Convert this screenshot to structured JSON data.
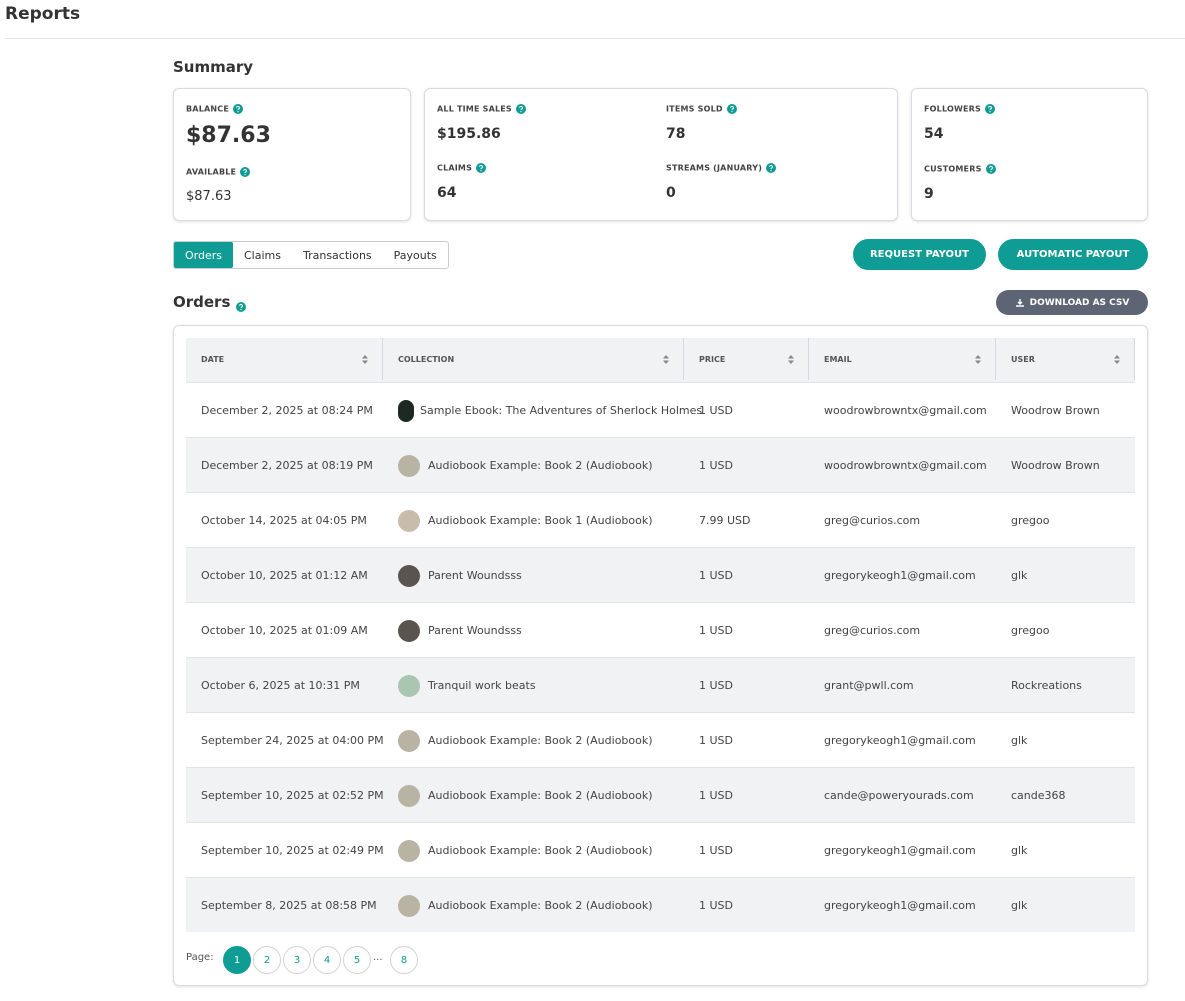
{
  "header": {
    "title": "Reports"
  },
  "summary": {
    "title": "Summary",
    "balance": {
      "label": "BALANCE",
      "value": "$87.63"
    },
    "available": {
      "label": "AVAILABLE",
      "value": "$87.63"
    },
    "all_time_sales": {
      "label": "ALL TIME SALES",
      "value": "$195.86"
    },
    "items_sold": {
      "label": "ITEMS SOLD",
      "value": "78"
    },
    "claims": {
      "label": "CLAIMS",
      "value": "64"
    },
    "streams": {
      "label": "STREAMS (JANUARY)",
      "value": "0"
    },
    "followers": {
      "label": "FOLLOWERS",
      "value": "54"
    },
    "customers": {
      "label": "CUSTOMERS",
      "value": "9"
    }
  },
  "tabs": [
    "Orders",
    "Claims",
    "Transactions",
    "Payouts"
  ],
  "buttons": {
    "request_payout": "REQUEST PAYOUT",
    "automatic_payout": "AUTOMATIC PAYOUT",
    "download_csv": "DOWNLOAD AS CSV"
  },
  "orders": {
    "title": "Orders",
    "columns": [
      "DATE",
      "COLLECTION",
      "PRICE",
      "EMAIL",
      "USER"
    ],
    "rows": [
      [
        "December 2, 2025 at 08:24 PM",
        "Sample Ebook: The Adventures of Sherlock Holmes",
        "1 USD",
        "woodrowbrowntx@gmail.com",
        "Woodrow Brown"
      ],
      [
        "December 2, 2025 at 08:19 PM",
        "Audiobook Example: Book 2 (Audiobook)",
        "1 USD",
        "woodrowbrowntx@gmail.com",
        "Woodrow Brown"
      ],
      [
        "October 14, 2025 at 04:05 PM",
        "Audiobook Example: Book 1 (Audiobook)",
        "7.99 USD",
        "greg@curios.com",
        "gregoo"
      ],
      [
        "October 10, 2025 at 01:12 AM",
        "Parent Woundsss",
        "1 USD",
        "gregorykeogh1@gmail.com",
        "glk"
      ],
      [
        "October 10, 2025 at 01:09 AM",
        "Parent Woundsss",
        "1 USD",
        "greg@curios.com",
        "gregoo"
      ],
      [
        "October 6, 2025 at 10:31 PM",
        "Tranquil work beats",
        "1 USD",
        "grant@pwll.com",
        "Rockreations"
      ],
      [
        "September 24, 2025 at 04:00 PM",
        "Audiobook Example: Book 2 (Audiobook)",
        "1 USD",
        "gregorykeogh1@gmail.com",
        "glk"
      ],
      [
        "September 10, 2025 at 02:52 PM",
        "Audiobook Example: Book 2 (Audiobook)",
        "1 USD",
        "cande@poweryourads.com",
        "cande368"
      ],
      [
        "September 10, 2025 at 02:49 PM",
        "Audiobook Example: Book 2 (Audiobook)",
        "1 USD",
        "gregorykeogh1@gmail.com",
        "glk"
      ],
      [
        "September 8, 2025 at 08:58 PM",
        "Audiobook Example: Book 2 (Audiobook)",
        "1 USD",
        "gregorykeogh1@gmail.com",
        "glk"
      ]
    ]
  },
  "pagination": {
    "label": "Page:",
    "pages": [
      "1",
      "2",
      "3",
      "4",
      "5",
      "...",
      "8"
    ]
  }
}
